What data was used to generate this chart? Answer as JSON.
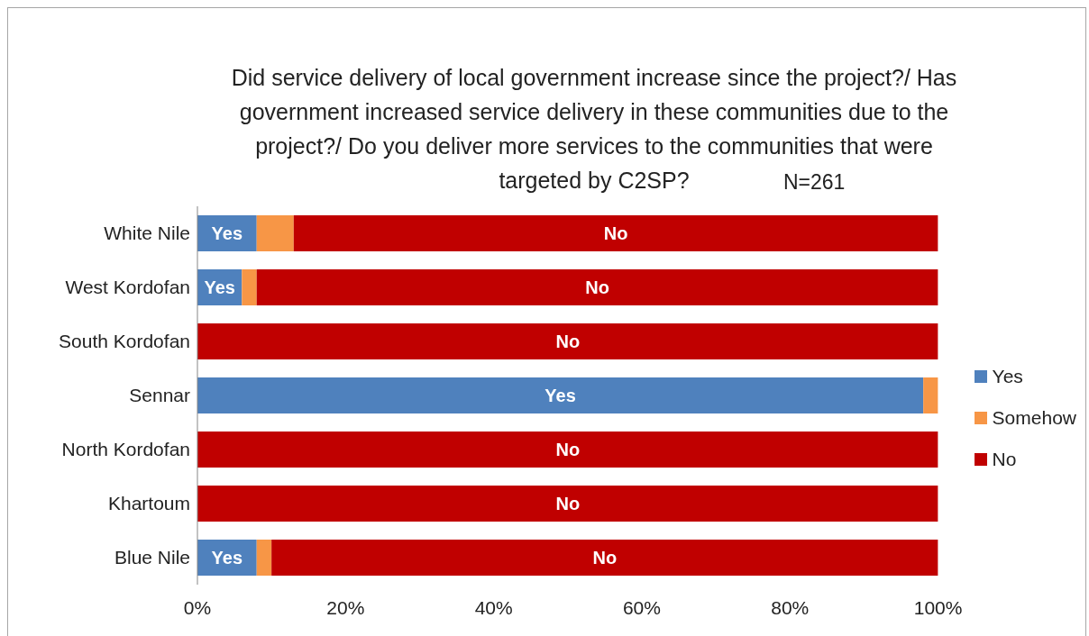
{
  "chart_data": {
    "type": "bar",
    "orientation": "horizontal",
    "stacked": true,
    "title": "Did service delivery of local government increase since the project?/ Has government increased service delivery in these communities due to the project?/ Do you deliver more services to the communities that were targeted by C2SP?",
    "annotations": [
      "N=261"
    ],
    "categories": [
      "White Nile",
      "West Kordofan",
      "South Kordofan",
      "Sennar",
      "North Kordofan",
      "Khartoum",
      "Blue Nile"
    ],
    "series": [
      {
        "name": "Yes",
        "color": "#4f81bd",
        "values": [
          8,
          6,
          0,
          98,
          0,
          0,
          8
        ],
        "value_labels": [
          "Yes",
          "Yes",
          null,
          "Yes",
          null,
          null,
          "Yes"
        ]
      },
      {
        "name": "Somehow",
        "color": "#f79646",
        "values": [
          5,
          2,
          0,
          2,
          0,
          0,
          2
        ],
        "value_labels": [
          null,
          null,
          null,
          null,
          null,
          null,
          null
        ]
      },
      {
        "name": "No",
        "color": "#c00000",
        "values": [
          87,
          92,
          100,
          0,
          100,
          100,
          90
        ],
        "value_labels": [
          "No",
          "No",
          "No",
          null,
          "No",
          "No",
          "No"
        ]
      }
    ],
    "xlim": [
      0,
      100
    ],
    "xticks": [
      {
        "value": 0,
        "label": "0%"
      },
      {
        "value": 20,
        "label": "20%"
      },
      {
        "value": 40,
        "label": "40%"
      },
      {
        "value": 60,
        "label": "60%"
      },
      {
        "value": 80,
        "label": "80%"
      },
      {
        "value": 100,
        "label": "100%"
      }
    ],
    "grid": false,
    "legend": "right"
  }
}
